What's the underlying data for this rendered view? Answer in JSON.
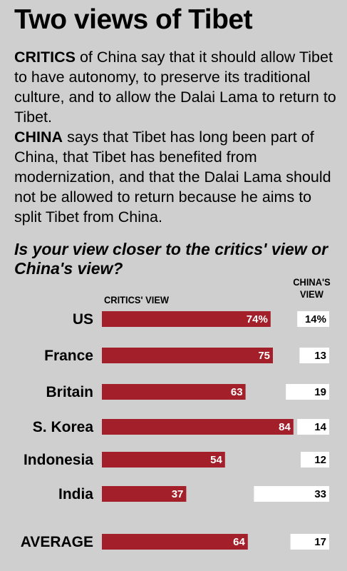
{
  "title": "Two views of Tibet",
  "intro": {
    "critics_lead": "CRITICS",
    "critics_text": " of China say that it should allow Tibet to have autonomy, to preserve its traditional culture, and to allow the Dalai Lama to return to Tibet.",
    "china_lead": "CHINA",
    "china_text": " says that Tibet has long been part of China, that Tibet has benefited from modernization, and that the Dalai Lama should not be allowed to return because he aims to split Tibet from China."
  },
  "question": "Is your view closer to the critics' view or China's view?",
  "chart_data": {
    "type": "bar",
    "categories": [
      "US",
      "France",
      "Britain",
      "S. Korea",
      "Indonesia",
      "India",
      "AVERAGE"
    ],
    "series": [
      {
        "name": "CRITICS' VIEW",
        "values": [
          74,
          75,
          63,
          84,
          54,
          37,
          64
        ],
        "labels": [
          "74%",
          "75",
          "63",
          "84",
          "54",
          "37",
          "64"
        ]
      },
      {
        "name": "CHINA'S VIEW",
        "values": [
          14,
          13,
          19,
          14,
          12,
          33,
          17
        ],
        "labels": [
          "14%",
          "13",
          "19",
          "14",
          "12",
          "33",
          "17"
        ]
      }
    ],
    "colors": {
      "critics": "#a31f2a",
      "china": "#ffffff",
      "background": "#cfcfcf"
    }
  }
}
